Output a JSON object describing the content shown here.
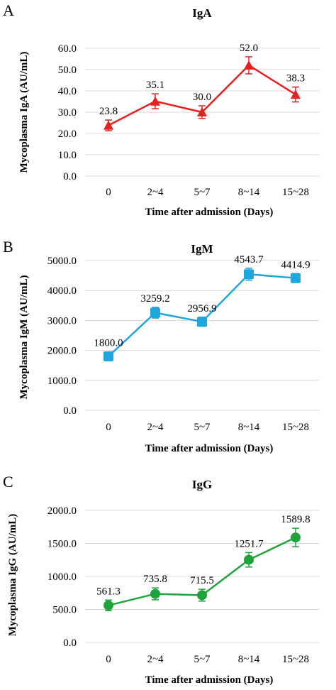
{
  "chart_data": [
    {
      "type": "line",
      "panel_label": "A",
      "title": "IgA",
      "xlabel": "Time after admission (Days)",
      "ylabel": "Mycoplasma IgA (AU/mL)",
      "categories": [
        "0",
        "2~4",
        "5~7",
        "8~14",
        "15~28"
      ],
      "y_ticks": [
        "0.0",
        "10.0",
        "20.0",
        "30.0",
        "40.0",
        "50.0",
        "60.0"
      ],
      "ylim": [
        0,
        60
      ],
      "grid": true,
      "marker": "triangle",
      "color": "#e81f1f",
      "series": [
        {
          "values": [
            23.8,
            35.1,
            30.0,
            52.0,
            38.3
          ],
          "value_labels": [
            "23.8",
            "35.1",
            "30.0",
            "52.0",
            "38.3"
          ],
          "error": [
            2.5,
            3.5,
            3.0,
            4.0,
            3.5
          ]
        }
      ]
    },
    {
      "type": "line",
      "panel_label": "B",
      "title": "IgM",
      "xlabel": "Time after admission (Days)",
      "ylabel": "Mycoplasma IgM (AU/mL)",
      "categories": [
        "0",
        "2~4",
        "5~7",
        "8~14",
        "15~28"
      ],
      "y_ticks": [
        "0.0",
        "1000.0",
        "2000.0",
        "3000.0",
        "4000.0",
        "5000.0"
      ],
      "ylim": [
        0,
        5000
      ],
      "grid": true,
      "marker": "square",
      "color": "#1fa6dd",
      "series": [
        {
          "values": [
            1800.0,
            3259.2,
            2956.9,
            4543.7,
            4414.9
          ],
          "value_labels": [
            "1800.0",
            "3259.2",
            "2956.9",
            "4543.7",
            "4414.9"
          ],
          "error": [
            150,
            180,
            150,
            200,
            150
          ]
        }
      ]
    },
    {
      "type": "line",
      "panel_label": "C",
      "title": "IgG",
      "xlabel": "Time after admission (Days)",
      "ylabel": "Mycoplasma IgG (AU/mL)",
      "categories": [
        "0",
        "2~4",
        "5~7",
        "8~14",
        "15~28"
      ],
      "y_ticks": [
        "0.0",
        "500.0",
        "1000.0",
        "1500.0",
        "2000.0"
      ],
      "ylim": [
        0,
        2000
      ],
      "grid": true,
      "marker": "circle",
      "color": "#1fa33a",
      "series": [
        {
          "values": [
            561.3,
            735.8,
            715.5,
            1251.7,
            1589.8
          ],
          "value_labels": [
            "561.3",
            "735.8",
            "715.5",
            "1251.7",
            "1589.8"
          ],
          "error": [
            80,
            90,
            90,
            110,
            140
          ]
        }
      ]
    }
  ]
}
